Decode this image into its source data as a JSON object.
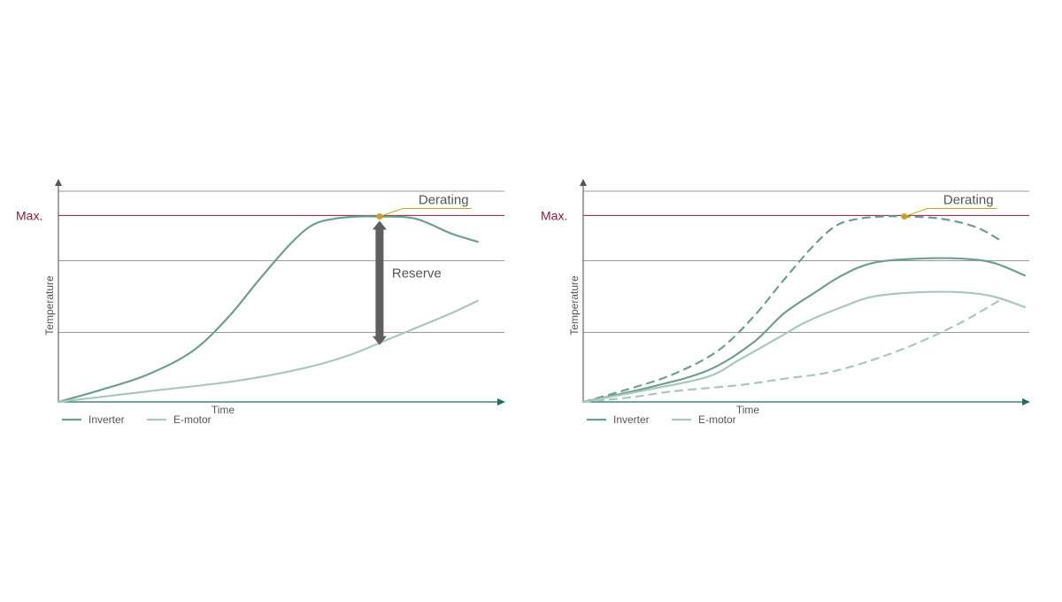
{
  "colors": {
    "inverter": "#6f9e8c",
    "emotor": "#a9c8bc",
    "axis": "#1f6f5f",
    "max_line": "#8b1c3c",
    "gridline": "#9a9a9a",
    "derating": "#c8a31a",
    "reserve_arrow": "#5f5f5f"
  },
  "chart_data": [
    {
      "type": "line",
      "xlabel": "Time",
      "ylabel": "Temperature",
      "max_label": "Max.",
      "xlim": [
        0,
        100
      ],
      "ylim": [
        0,
        100
      ],
      "grid": true,
      "gridlines_y": [
        33,
        67,
        100
      ],
      "max_value": 88.5,
      "legend": [
        "Inverter",
        "E-motor"
      ],
      "legend_placement": "bottom-left",
      "series": [
        {
          "name": "Inverter",
          "style": "solid",
          "x": [
            0,
            10,
            20,
            30,
            38,
            45,
            52,
            57,
            62,
            67,
            72,
            80,
            88,
            94
          ],
          "y": [
            0,
            6,
            13,
            24,
            40,
            58,
            75,
            84,
            87,
            88,
            88,
            87,
            80,
            76
          ]
        },
        {
          "name": "E-motor",
          "style": "solid",
          "x": [
            0,
            20,
            40,
            55,
            65,
            72,
            80,
            88,
            94
          ],
          "y": [
            0,
            5,
            10,
            16,
            22,
            28,
            35,
            42,
            48
          ]
        }
      ],
      "annotations": {
        "derating": {
          "label": "Derating",
          "x": 72,
          "y": 88
        },
        "reserve": {
          "label": "Reserve",
          "x": 72,
          "y_top": 86,
          "y_bottom": 27
        }
      }
    },
    {
      "type": "line",
      "xlabel": "Time",
      "ylabel": "Temperature",
      "max_label": "Max.",
      "xlim": [
        0,
        100
      ],
      "ylim": [
        0,
        100
      ],
      "grid": true,
      "gridlines_y": [
        33,
        67,
        100
      ],
      "max_value": 88.5,
      "legend": [
        "Inverter",
        "E-motor"
      ],
      "legend_placement": "bottom-left",
      "series": [
        {
          "name": "Inverter",
          "style": "dashed",
          "x": [
            0,
            10,
            20,
            30,
            38,
            45,
            52,
            57,
            62,
            67,
            72,
            80,
            88,
            94
          ],
          "y": [
            0,
            6,
            13,
            24,
            40,
            58,
            75,
            84,
            87,
            88,
            88,
            87,
            83,
            76
          ]
        },
        {
          "name": "Inverter",
          "style": "solid",
          "x": [
            0,
            15,
            28,
            38,
            45,
            52,
            58,
            65,
            75,
            85,
            92,
            99
          ],
          "y": [
            0,
            7,
            15,
            28,
            42,
            52,
            60,
            66,
            68,
            68,
            66,
            60
          ]
        },
        {
          "name": "E-motor",
          "style": "solid",
          "x": [
            0,
            15,
            28,
            35,
            45,
            50,
            58,
            65,
            75,
            85,
            92,
            99
          ],
          "y": [
            0,
            6,
            12,
            20,
            32,
            38,
            45,
            50,
            52,
            52,
            50,
            45
          ]
        },
        {
          "name": "E-motor",
          "style": "dashed",
          "x": [
            0,
            10,
            20,
            35,
            45,
            55,
            65,
            75,
            85,
            94
          ],
          "y": [
            0,
            2,
            5,
            8,
            11,
            14,
            20,
            28,
            38,
            49
          ]
        }
      ],
      "annotations": {
        "derating": {
          "label": "Derating",
          "x": 72,
          "y": 88
        }
      }
    }
  ]
}
